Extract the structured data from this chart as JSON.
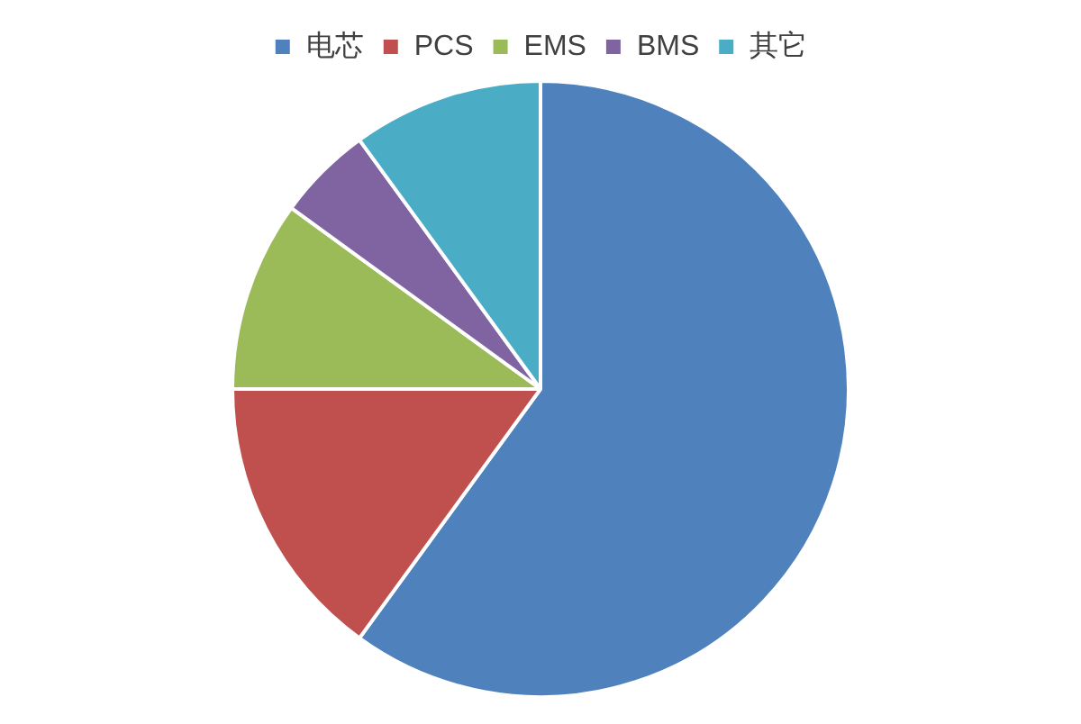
{
  "chart_data": {
    "type": "pie",
    "categories": [
      "电芯",
      "PCS",
      "EMS",
      "BMS",
      "其它"
    ],
    "values": [
      60,
      15,
      10,
      5,
      10
    ],
    "colors": [
      "#4f81bd",
      "#c0504d",
      "#9bbb59",
      "#8064a2",
      "#4bacc6"
    ],
    "legend": "top"
  }
}
